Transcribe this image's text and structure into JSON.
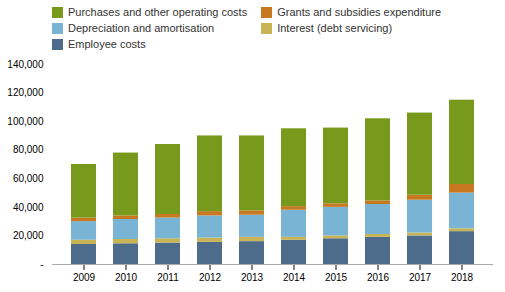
{
  "chart_data": {
    "type": "bar",
    "stacked": true,
    "categories": [
      "2009",
      "2010",
      "2011",
      "2012",
      "2013",
      "2014",
      "2015",
      "2016",
      "2017",
      "2018"
    ],
    "series": [
      {
        "name": "Employee costs",
        "color": "#4d6b8b",
        "values": [
          14000,
          14500,
          15000,
          15500,
          16000,
          17000,
          18000,
          19000,
          20000,
          23000
        ]
      },
      {
        "name": "Interest (debt servicing)",
        "color": "#c8b454",
        "values": [
          3000,
          3000,
          3000,
          3000,
          3000,
          2000,
          2000,
          2000,
          2000,
          2000
        ]
      },
      {
        "name": "Depreciation and amortisation",
        "color": "#7ab4d4",
        "values": [
          13000,
          14000,
          14500,
          15500,
          15500,
          19000,
          20000,
          21000,
          23000,
          25000
        ]
      },
      {
        "name": "Grants and subsidies expenditure",
        "color": "#c87820",
        "values": [
          2500,
          2500,
          2500,
          3000,
          3000,
          2500,
          2500,
          2500,
          3500,
          6000
        ]
      },
      {
        "name": "Purchases and other operating costs",
        "color": "#789a1c",
        "values": [
          37500,
          44000,
          49000,
          53000,
          52500,
          54500,
          53000,
          57500,
          57500,
          59000
        ]
      }
    ],
    "ylim": [
      0,
      140000
    ],
    "yticks": [
      {
        "value": 0,
        "label": "-"
      },
      {
        "value": 20000,
        "label": "20,000"
      },
      {
        "value": 40000,
        "label": "40,000"
      },
      {
        "value": 60000,
        "label": "60,000"
      },
      {
        "value": 80000,
        "label": "80,000"
      },
      {
        "value": 100000,
        "label": "100,000"
      },
      {
        "value": 120000,
        "label": "120,000"
      },
      {
        "value": 140000,
        "label": "140,000"
      }
    ],
    "legend": "top",
    "grid": false
  }
}
